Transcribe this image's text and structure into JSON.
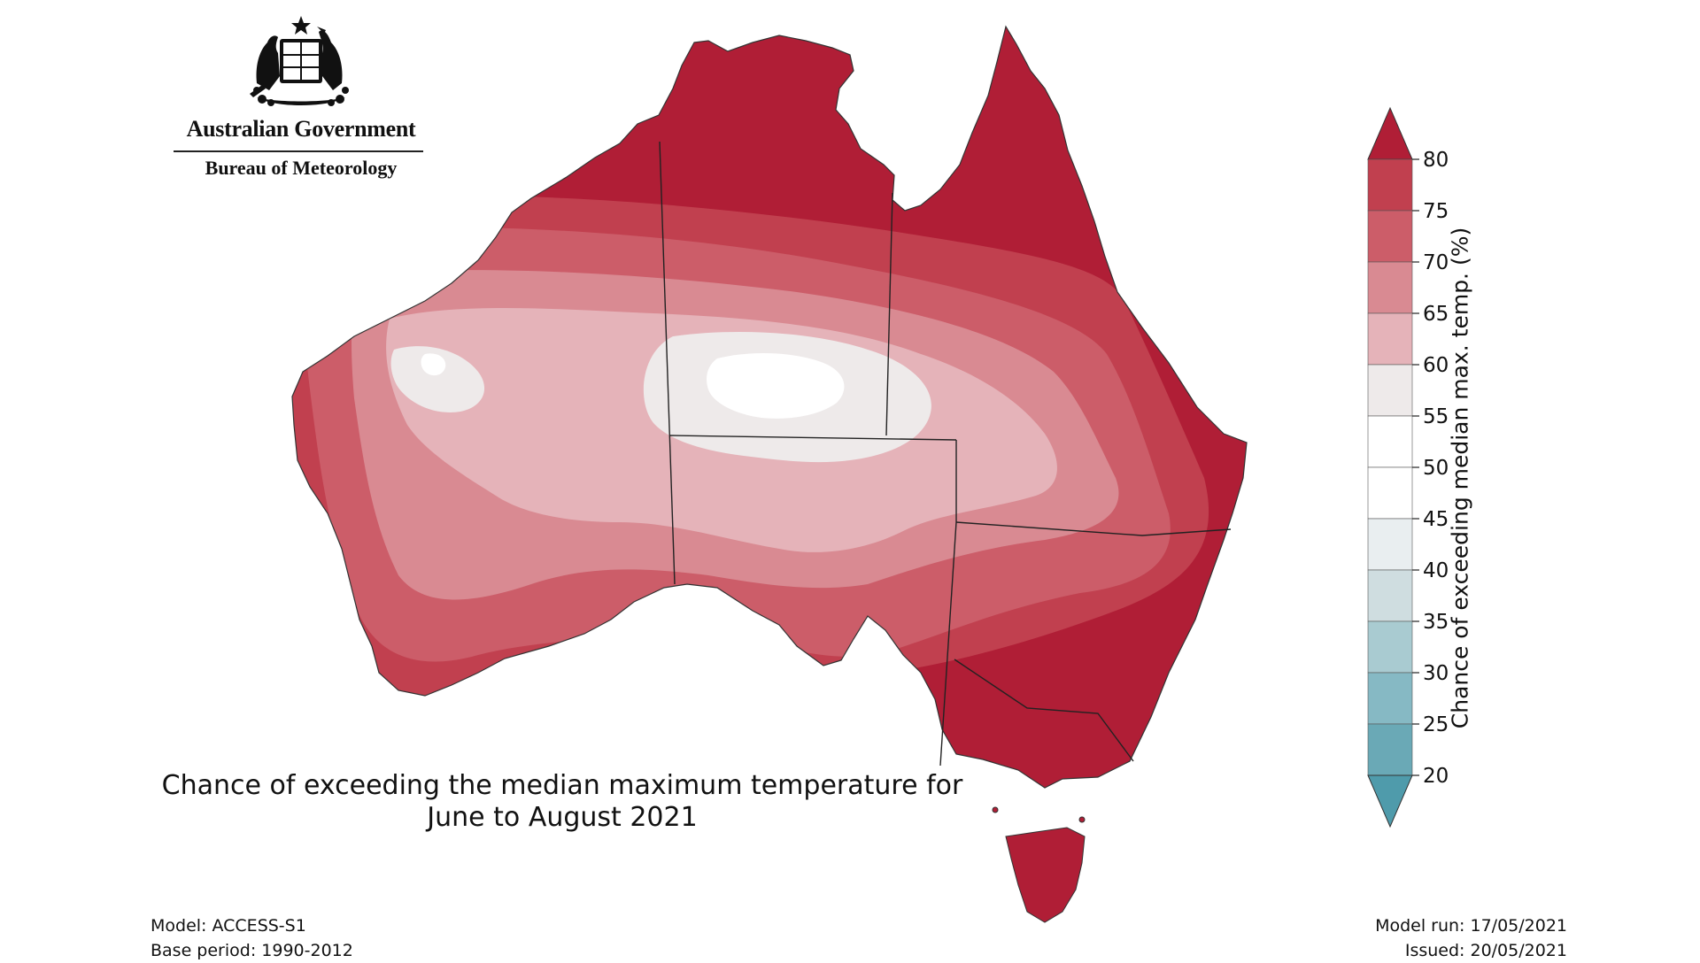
{
  "branding": {
    "government": "Australian Government",
    "agency": "Bureau of Meteorology"
  },
  "map": {
    "title_line1": "Chance of exceeding the median maximum temperature for",
    "title_line2": "June to August 2021",
    "region": "Australia",
    "colors": {
      "80": "#b01e36",
      "75": "#c1404f",
      "70": "#cc5d69",
      "65": "#d98a92",
      "60": "#e5b3b9",
      "55": "#eeeaea",
      "45": "#ffffff"
    }
  },
  "footer": {
    "model": "Model: ACCESS-S1",
    "base_period": "Base period: 1990-2012",
    "model_run": "Model run: 17/05/2021",
    "issued": "Issued: 20/05/2021"
  },
  "colorbar": {
    "title": "Chance of exceeding median max. temp. (%)",
    "ticks": [
      80,
      75,
      70,
      65,
      60,
      55,
      50,
      45,
      40,
      35,
      30,
      25,
      20
    ],
    "colors": [
      "#c1404f",
      "#cc5d69",
      "#d98a92",
      "#e5b3b9",
      "#eeeaea",
      "#ffffff",
      "#ffffff",
      "#e9eef0",
      "#cfdde0",
      "#a9cbd1",
      "#86b9c4",
      "#6aa9b6"
    ],
    "over_color": "#b01e36",
    "under_color": "#4f9bab"
  }
}
